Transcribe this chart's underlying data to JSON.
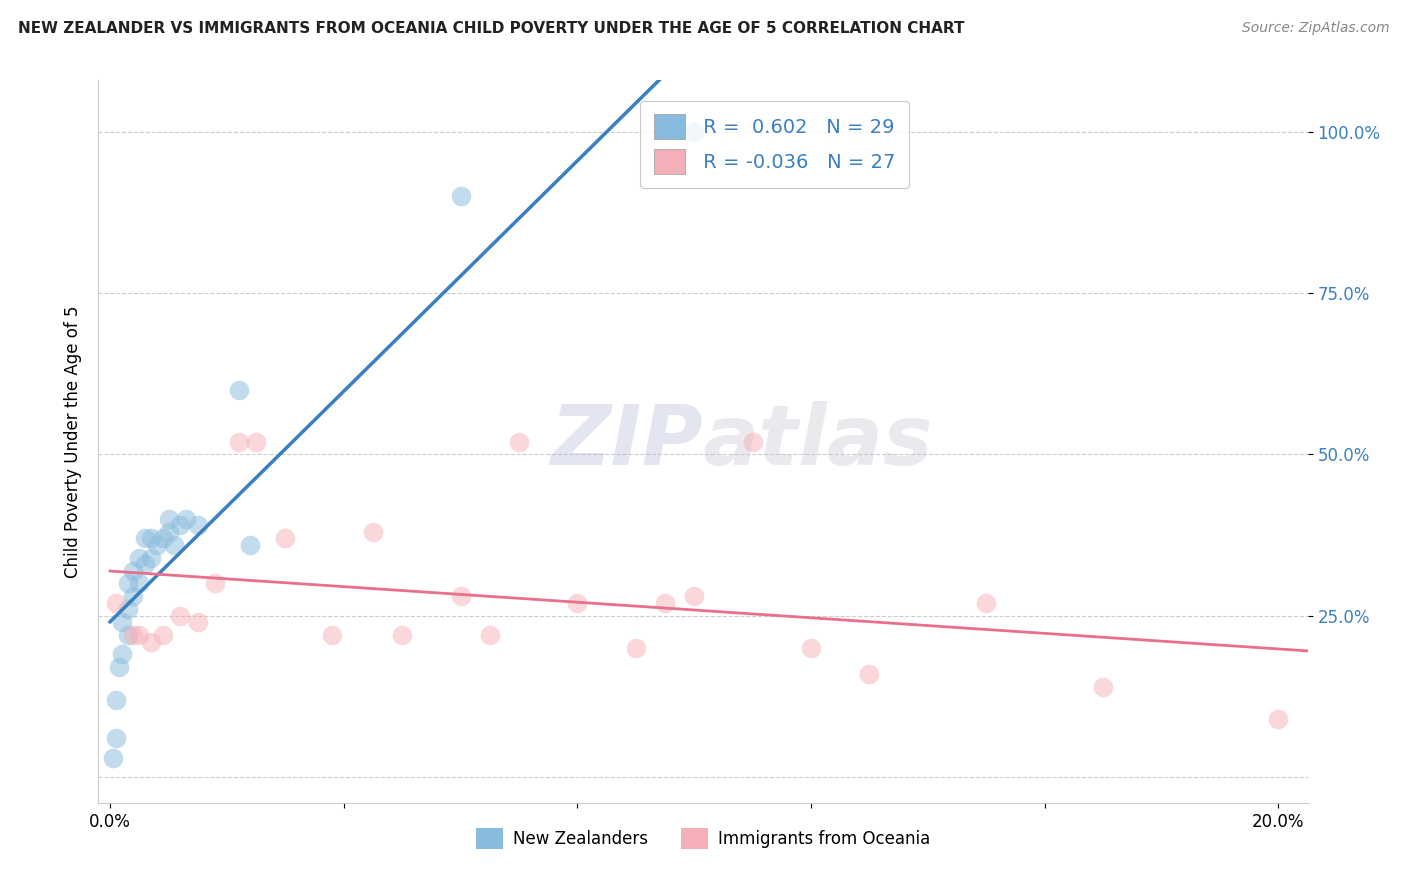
{
  "title": "NEW ZEALANDER VS IMMIGRANTS FROM OCEANIA CHILD POVERTY UNDER THE AGE OF 5 CORRELATION CHART",
  "source": "Source: ZipAtlas.com",
  "ylabel": "Child Poverty Under the Age of 5",
  "nz_R": 0.602,
  "nz_N": 29,
  "imm_R": -0.036,
  "imm_N": 27,
  "nz_color": "#88bbdd",
  "imm_color": "#f4b0b8",
  "nz_line_color": "#3a7fc1",
  "imm_line_color": "#e8708a",
  "tick_color": "#3a7fc1",
  "background_color": "#ffffff",
  "grid_color": "#cccccc",
  "legend_labels": [
    "New Zealanders",
    "Immigrants from Oceania"
  ],
  "xlim": [
    -0.002,
    0.205
  ],
  "ylim": [
    -0.04,
    1.08
  ],
  "ytick_vals": [
    0.25,
    0.5,
    0.75,
    1.0
  ],
  "ytick_labels": [
    "25.0%",
    "50.0%",
    "75.0%",
    "100.0%"
  ],
  "xtick_vals": [
    0.0,
    0.04,
    0.08,
    0.12,
    0.16,
    0.2
  ],
  "xtick_labels": [
    "0.0%",
    "",
    "",
    "",
    "",
    "20.0%"
  ],
  "nz_x": [
    0.0005,
    0.001,
    0.001,
    0.0015,
    0.002,
    0.002,
    0.003,
    0.003,
    0.003,
    0.004,
    0.004,
    0.005,
    0.005,
    0.006,
    0.006,
    0.007,
    0.007,
    0.008,
    0.009,
    0.01,
    0.01,
    0.011,
    0.012,
    0.013,
    0.015,
    0.022,
    0.024,
    0.06,
    0.1
  ],
  "nz_y": [
    0.03,
    0.06,
    0.12,
    0.17,
    0.19,
    0.24,
    0.22,
    0.26,
    0.3,
    0.28,
    0.32,
    0.3,
    0.34,
    0.33,
    0.37,
    0.34,
    0.37,
    0.36,
    0.37,
    0.38,
    0.4,
    0.36,
    0.39,
    0.4,
    0.39,
    0.6,
    0.36,
    0.9,
    1.0
  ],
  "imm_x": [
    0.001,
    0.004,
    0.005,
    0.007,
    0.009,
    0.012,
    0.015,
    0.018,
    0.022,
    0.025,
    0.03,
    0.038,
    0.045,
    0.05,
    0.06,
    0.065,
    0.07,
    0.08,
    0.09,
    0.095,
    0.1,
    0.11,
    0.12,
    0.13,
    0.15,
    0.17,
    0.2
  ],
  "imm_y": [
    0.27,
    0.22,
    0.22,
    0.21,
    0.22,
    0.25,
    0.24,
    0.3,
    0.52,
    0.52,
    0.37,
    0.22,
    0.38,
    0.22,
    0.28,
    0.22,
    0.52,
    0.27,
    0.2,
    0.27,
    0.28,
    0.52,
    0.2,
    0.16,
    0.27,
    0.14,
    0.09
  ],
  "watermark_text": "ZIPat las",
  "watermark_color": "#c8cce8",
  "watermark_alpha": 0.5
}
